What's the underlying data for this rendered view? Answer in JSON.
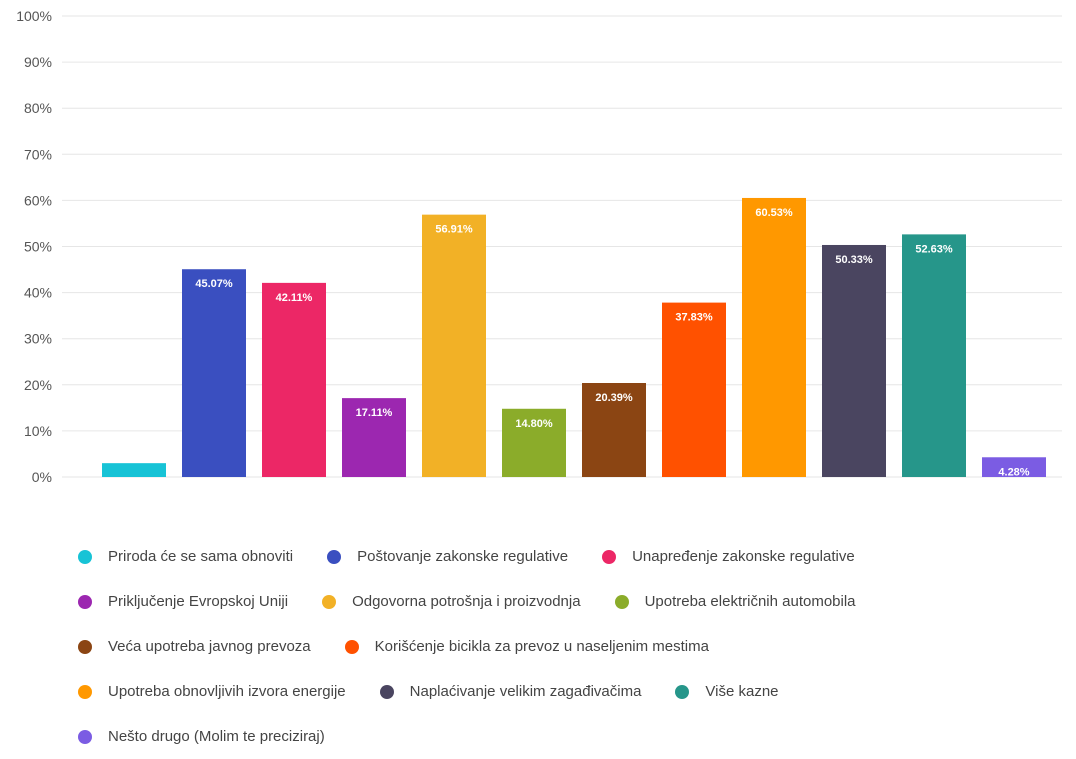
{
  "chart_data": {
    "type": "bar",
    "categories": [
      "Priroda će se sama obnoviti",
      "Poštovanje zakonske regulative",
      "Unapređenje zakonske regulative",
      "Priključenje Evropskoj Uniji",
      "Odgovorna potrošnja i proizvodnja",
      "Upotreba električnih automobila",
      "Veća upotreba javnog prevoza",
      "Korišćenje bicikla za prevoz u naseljenim mestima",
      "Upotreba obnovljivih izvora energije",
      "Naplaćivanje velikim zagađivačima",
      "Više kazne",
      "Nešto drugo (Molim te preciziraj)"
    ],
    "values": [
      3.0,
      45.07,
      42.11,
      17.11,
      56.91,
      14.8,
      20.39,
      37.83,
      60.53,
      50.33,
      52.63,
      4.28
    ],
    "data_labels": [
      "",
      "45.07%",
      "42.11%",
      "17.11%",
      "56.91%",
      "14.80%",
      "20.39%",
      "37.83%",
      "60.53%",
      "50.33%",
      "52.63%",
      "4.28%"
    ],
    "colors": [
      "#17c3d6",
      "#3a4fc0",
      "#ec2766",
      "#9c27b0",
      "#f2b126",
      "#8bac2a",
      "#8b4513",
      "#ff5100",
      "#ff9800",
      "#4a4560",
      "#26968a",
      "#7b5ce3"
    ],
    "y_ticks": [
      "0%",
      "10%",
      "20%",
      "30%",
      "40%",
      "50%",
      "60%",
      "70%",
      "80%",
      "90%",
      "100%"
    ],
    "ylim": [
      0,
      100
    ],
    "grid": true,
    "legend_position": "bottom",
    "title": "",
    "xlabel": "",
    "ylabel": ""
  },
  "legend_rows": [
    [
      0,
      1,
      2
    ],
    [
      3,
      4,
      5
    ],
    [
      6,
      7
    ],
    [
      8,
      9,
      10
    ],
    [
      11
    ]
  ]
}
